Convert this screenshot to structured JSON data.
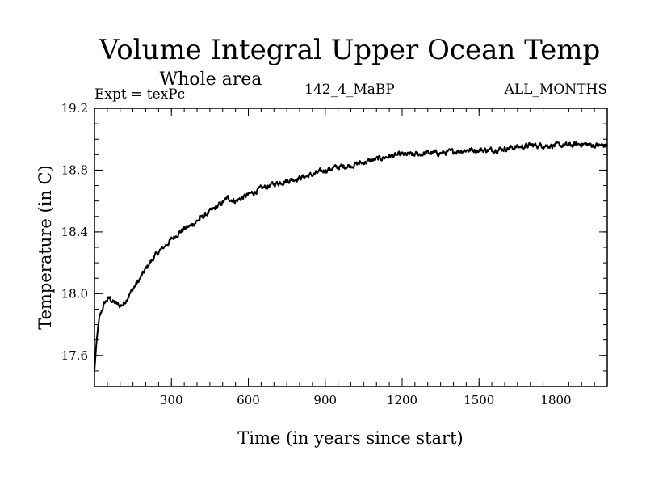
{
  "chart_data": {
    "type": "line",
    "title": "Volume Integral Upper Ocean Temp",
    "subtitle": "Whole area",
    "left_label": "Expt = texPc",
    "center_label": "142_4_MaBP",
    "right_label": "ALL_MONTHS",
    "xlabel": "Time (in years since start)",
    "ylabel": "Temperature (in C)",
    "xlim": [
      0,
      2000
    ],
    "ylim": [
      17.4,
      19.2
    ],
    "x_major_ticks": [
      300,
      600,
      900,
      1200,
      1500,
      1800
    ],
    "x_minor_step": 50,
    "y_major_ticks": [
      17.6,
      18.0,
      18.4,
      18.8,
      19.2
    ],
    "y_minor_step": 0.1,
    "grid": false,
    "series": [
      {
        "name": "Volume integral upper ocean temperature",
        "color": "#000000",
        "x": [
          0,
          5,
          10,
          15,
          20,
          30,
          40,
          50,
          60,
          70,
          80,
          90,
          100,
          110,
          120,
          130,
          150,
          175,
          200,
          225,
          250,
          275,
          300,
          325,
          350,
          375,
          400,
          450,
          500,
          520,
          550,
          600,
          650,
          700,
          750,
          800,
          850,
          900,
          950,
          1000,
          1050,
          1100,
          1150,
          1200,
          1250,
          1300,
          1350,
          1400,
          1450,
          1500,
          1550,
          1600,
          1650,
          1700,
          1750,
          1800,
          1850,
          1900,
          1950,
          2000
        ],
        "y": [
          17.5,
          17.62,
          17.72,
          17.8,
          17.85,
          17.9,
          17.94,
          17.96,
          17.97,
          17.95,
          17.94,
          17.93,
          17.92,
          17.93,
          17.95,
          17.98,
          18.03,
          18.09,
          18.16,
          18.22,
          18.27,
          18.31,
          18.35,
          18.39,
          18.42,
          18.44,
          18.47,
          18.53,
          18.59,
          18.62,
          18.6,
          18.64,
          18.68,
          18.71,
          18.73,
          18.75,
          18.77,
          18.8,
          18.82,
          18.83,
          18.85,
          18.87,
          18.89,
          18.9,
          18.9,
          18.91,
          18.91,
          18.92,
          18.93,
          18.93,
          18.93,
          18.94,
          18.95,
          18.96,
          18.96,
          18.96,
          18.96,
          18.97,
          18.96,
          18.96
        ]
      }
    ]
  }
}
